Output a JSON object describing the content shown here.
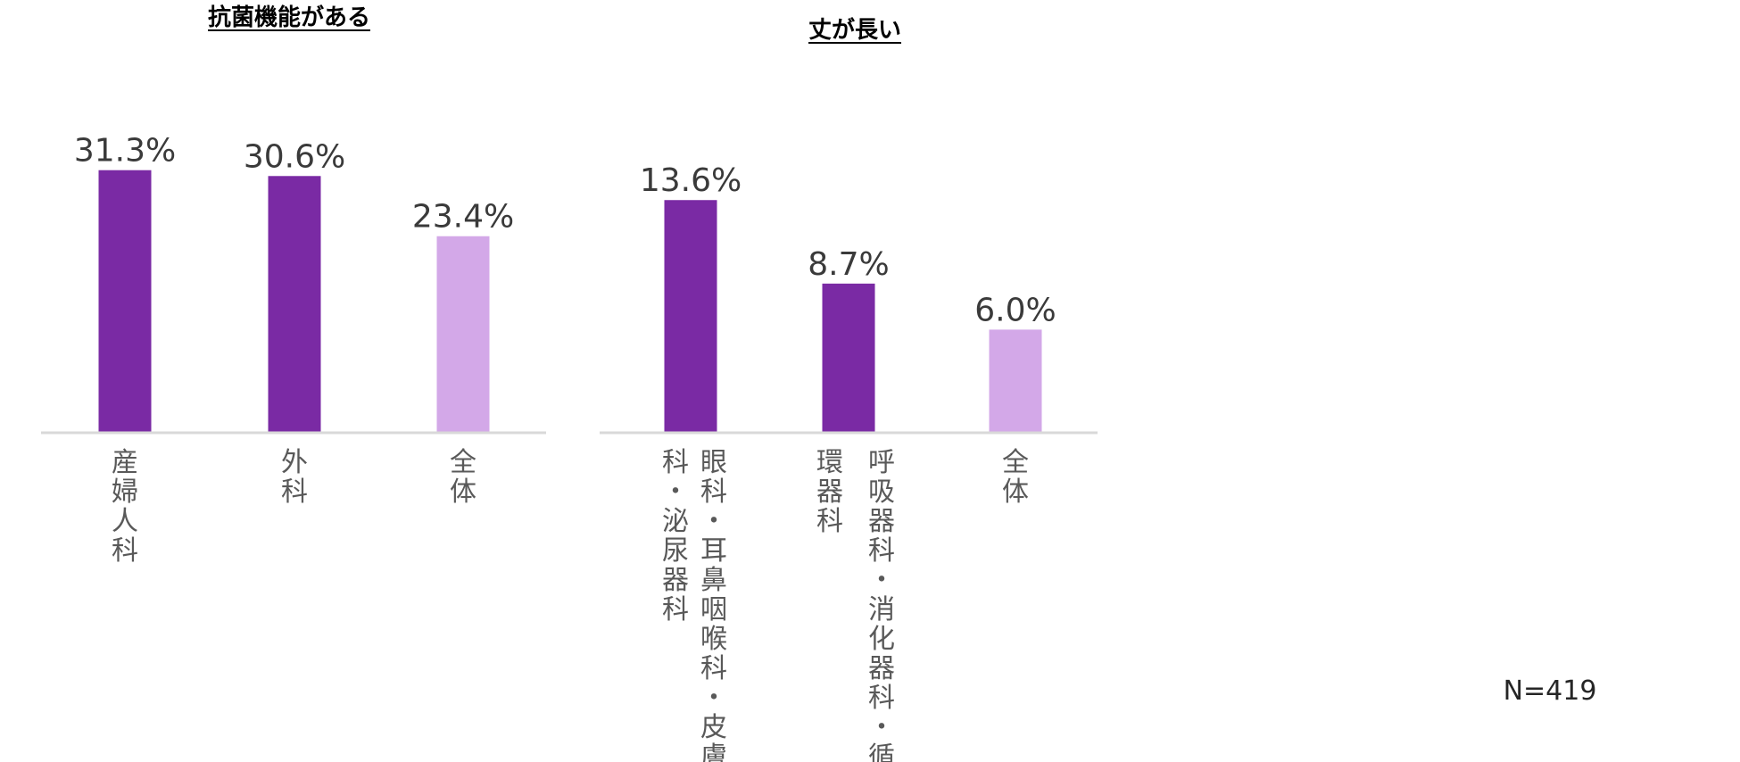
{
  "colors": {
    "highlight": "#7a2aa4",
    "overall": "#d3a8e8",
    "axis": "#d9d9d9"
  },
  "chart_data": [
    {
      "type": "bar",
      "title": "抗菌機能がある",
      "categories": [
        "産婦人科",
        "外科",
        "全体"
      ],
      "category_lines": [
        [
          "産婦人科"
        ],
        [
          "外科"
        ],
        [
          "全体"
        ]
      ],
      "values": [
        31.3,
        30.6,
        23.4
      ],
      "value_labels": [
        "31.3%",
        "30.6%",
        "23.4%"
      ],
      "ylim": [
        0,
        35
      ],
      "grid": false
    },
    {
      "type": "bar",
      "title": "丈が長い",
      "categories": [
        "眼科・耳鼻咽喉科・皮膚科・泌尿器科",
        "呼吸器科・消化器科・循環器科",
        "全体"
      ],
      "category_lines": [
        [
          "眼科・耳鼻咽喉科・皮膚",
          "科・泌尿器科"
        ],
        [
          "呼吸器科・消化器科・循",
          "環器科"
        ],
        [
          "全体"
        ]
      ],
      "values": [
        13.6,
        8.7,
        6.0
      ],
      "value_labels": [
        "13.6%",
        "8.7%",
        "6.0%"
      ],
      "ylim": [
        0,
        16
      ],
      "grid": false
    }
  ],
  "note": "N=419"
}
